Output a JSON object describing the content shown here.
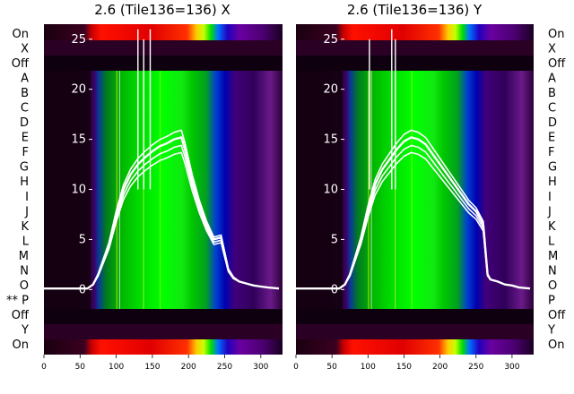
{
  "chart_data": [
    {
      "type": "heatmap",
      "title": "2.6 (Tile136=136) X",
      "x_ticks": [
        0,
        50,
        100,
        150,
        200,
        250,
        300
      ],
      "xlim": [
        0,
        330
      ],
      "y_ticks": [
        0,
        5,
        10,
        15,
        20,
        25
      ],
      "ylim": [
        -6.5,
        26.5
      ],
      "row_labels": [
        "On",
        "X",
        "Off",
        "A",
        "B",
        "C",
        "D",
        "E",
        "F",
        "G",
        "H",
        "I",
        "J",
        "K",
        "L",
        "M",
        "N",
        "O",
        "** P",
        "Off",
        "Y",
        "On"
      ],
      "grid": false,
      "series": [
        {
          "x": [
            0,
            20,
            40,
            60,
            68,
            75,
            90,
            100,
            110,
            120,
            130,
            140,
            150,
            160,
            170,
            180,
            190,
            195,
            205,
            215,
            225,
            235,
            245,
            255,
            262,
            270,
            280,
            290,
            300,
            310,
            325
          ],
          "values": [
            0.1,
            0.1,
            0.1,
            0.1,
            0.5,
            1.5,
            4.5,
            7.5,
            10,
            11.5,
            12.5,
            13.2,
            13.8,
            14.3,
            14.6,
            15,
            15.2,
            14,
            11,
            8.5,
            6.5,
            5,
            5.2,
            2,
            1.2,
            0.8,
            0.6,
            0.4,
            0.3,
            0.2,
            0.1
          ]
        }
      ]
    },
    {
      "type": "heatmap",
      "title": "2.6 (Tile136=136) Y",
      "x_ticks": [
        0,
        50,
        100,
        150,
        200,
        250,
        300
      ],
      "xlim": [
        0,
        330
      ],
      "y_ticks": [
        0,
        5,
        10,
        15,
        20,
        25
      ],
      "ylim": [
        -6.5,
        26.5
      ],
      "row_labels": [
        "On",
        "X",
        "Off",
        "A",
        "B",
        "C",
        "D",
        "E",
        "F",
        "G",
        "H",
        "I",
        "J",
        "K",
        "L",
        "M",
        "N",
        "O",
        "P",
        "Off",
        "Y",
        "On"
      ],
      "grid": false,
      "series": [
        {
          "x": [
            0,
            20,
            40,
            60,
            68,
            75,
            90,
            100,
            110,
            120,
            130,
            140,
            150,
            160,
            170,
            180,
            190,
            200,
            210,
            220,
            230,
            240,
            250,
            260,
            266,
            270,
            280,
            290,
            300,
            310,
            325
          ],
          "values": [
            0.1,
            0.1,
            0.1,
            0.1,
            0.5,
            1.5,
            5,
            8,
            10.5,
            12,
            13,
            14,
            14.8,
            15.2,
            15,
            14.5,
            13.5,
            12.5,
            11.5,
            10.5,
            9.5,
            8.5,
            7.8,
            6.5,
            1.5,
            1.0,
            0.8,
            0.5,
            0.4,
            0.2,
            0.1
          ]
        }
      ]
    }
  ]
}
